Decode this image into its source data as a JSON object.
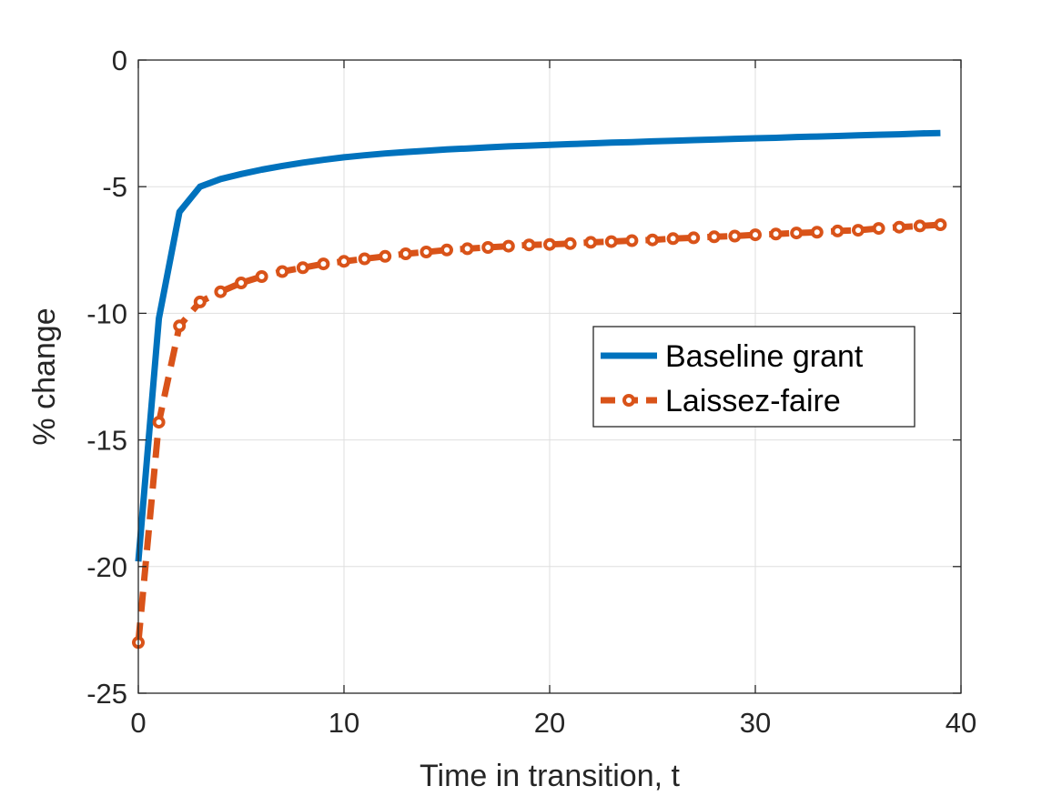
{
  "chart_data": {
    "type": "line",
    "title": "",
    "xlabel": "Time in transition, t",
    "ylabel": "% change",
    "xlim": [
      0,
      40
    ],
    "ylim": [
      -25,
      0
    ],
    "xticks": [
      0,
      10,
      20,
      30,
      40
    ],
    "yticks": [
      -25,
      -20,
      -15,
      -10,
      -5,
      0
    ],
    "grid": true,
    "legend_position": "right",
    "series": [
      {
        "name": "Baseline grant",
        "color": "#0072BD",
        "style": "solid",
        "marker": "none",
        "x": [
          0,
          1,
          2,
          3,
          4,
          5,
          6,
          7,
          8,
          9,
          10,
          11,
          12,
          13,
          14,
          15,
          16,
          17,
          18,
          19,
          20,
          21,
          22,
          23,
          24,
          25,
          26,
          27,
          28,
          29,
          30,
          31,
          32,
          33,
          34,
          35,
          36,
          37,
          38,
          39
        ],
        "values": [
          -19.8,
          -10.2,
          -6.0,
          -5.0,
          -4.7,
          -4.5,
          -4.33,
          -4.18,
          -4.05,
          -3.94,
          -3.84,
          -3.76,
          -3.69,
          -3.63,
          -3.58,
          -3.53,
          -3.49,
          -3.45,
          -3.41,
          -3.38,
          -3.35,
          -3.32,
          -3.29,
          -3.26,
          -3.24,
          -3.21,
          -3.19,
          -3.16,
          -3.14,
          -3.11,
          -3.09,
          -3.07,
          -3.04,
          -3.02,
          -3.0,
          -2.97,
          -2.95,
          -2.93,
          -2.9,
          -2.88
        ]
      },
      {
        "name": "Laissez-faire",
        "color": "#D95319",
        "style": "dashed",
        "marker": "circle",
        "x": [
          0,
          1,
          2,
          3,
          4,
          5,
          6,
          7,
          8,
          9,
          10,
          11,
          12,
          13,
          14,
          15,
          16,
          17,
          18,
          19,
          20,
          21,
          22,
          23,
          24,
          25,
          26,
          27,
          28,
          29,
          30,
          31,
          32,
          33,
          34,
          35,
          36,
          37,
          38,
          39
        ],
        "values": [
          -23.0,
          -14.3,
          -10.5,
          -9.55,
          -9.15,
          -8.8,
          -8.55,
          -8.35,
          -8.2,
          -8.05,
          -7.95,
          -7.85,
          -7.75,
          -7.65,
          -7.58,
          -7.5,
          -7.45,
          -7.4,
          -7.35,
          -7.3,
          -7.28,
          -7.25,
          -7.2,
          -7.17,
          -7.13,
          -7.1,
          -7.05,
          -7.02,
          -6.98,
          -6.95,
          -6.9,
          -6.87,
          -6.83,
          -6.8,
          -6.75,
          -6.72,
          -6.65,
          -6.6,
          -6.55,
          -6.5
        ]
      }
    ]
  }
}
